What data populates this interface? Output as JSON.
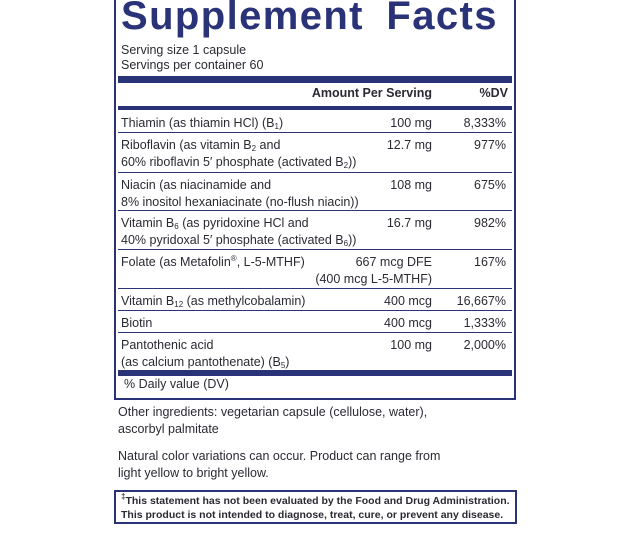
{
  "title": "Supplement Facts",
  "serving_size": "Serving size  1 capsule",
  "servings_per_container": "Servings per container  60",
  "headers": {
    "amount": "Amount Per Serving",
    "dv": "%DV"
  },
  "rows": [
    {
      "l1": "Thiamin (as thiamin HCl) (B",
      "l1_sub": "1",
      "l1_after": ")",
      "amount": "100 mg",
      "dv": "8,333%"
    },
    {
      "l1": "Riboflavin (as vitamin B",
      "l1_sub": "2",
      "l1_after": " and",
      "l2": "60% riboflavin 5′ phosphate (activated B",
      "l2_sub": "2",
      "l2_after": "))",
      "amount": "12.7 mg",
      "dv": "977%"
    },
    {
      "l1": "Niacin (as niacinamide and",
      "l2": "8% inositol hexaniacinate (no-flush niacin))",
      "amount": "108 mg",
      "dv": "675%"
    },
    {
      "l1": "Vitamin B",
      "l1_sub": "6",
      "l1_after": " (as pyridoxine HCl and",
      "l2": "40% pyridoxal 5′ phosphate (activated B",
      "l2_sub": "6",
      "l2_after": "))",
      "amount": "16.7 mg",
      "dv": "982%"
    },
    {
      "l1": "Folate (as Metafolin",
      "l1_sup": "®",
      "l1_after": ", L-5-MTHF)",
      "amount": "667 mcg DFE",
      "amount2": "(400 mcg L-5-MTHF)",
      "dv": "167%"
    },
    {
      "l1": "Vitamin B",
      "l1_sub": "12",
      "l1_after": " (as methylcobalamin)",
      "amount": "400 mcg",
      "dv": "16,667%"
    },
    {
      "l1": "Biotin",
      "amount": "400 mcg",
      "dv": "1,333%"
    },
    {
      "l1": "Pantothenic acid",
      "l2": "(as calcium pantothenate) (B",
      "l2_sub": "5",
      "l2_after": ")",
      "amount": "100 mg",
      "dv": "2,000%"
    }
  ],
  "footnote": "% Daily value (DV)",
  "other_ingredients": {
    "l1": "Other ingredients: vegetarian capsule (cellulose, water),",
    "l2": "ascorbyl palmitate"
  },
  "color_note": {
    "l1": "Natural color variations can occur. Product can range from",
    "l2": "light yellow to bright yellow."
  },
  "disclaimer": {
    "mark": "‡",
    "l1": "This statement has not been evaluated by the Food and Drug Administration.",
    "l2": "This product is not intended to diagnose, treat, cure, or prevent any disease."
  },
  "colors": {
    "brand": "#2a3378",
    "text": "#2a2a33"
  }
}
